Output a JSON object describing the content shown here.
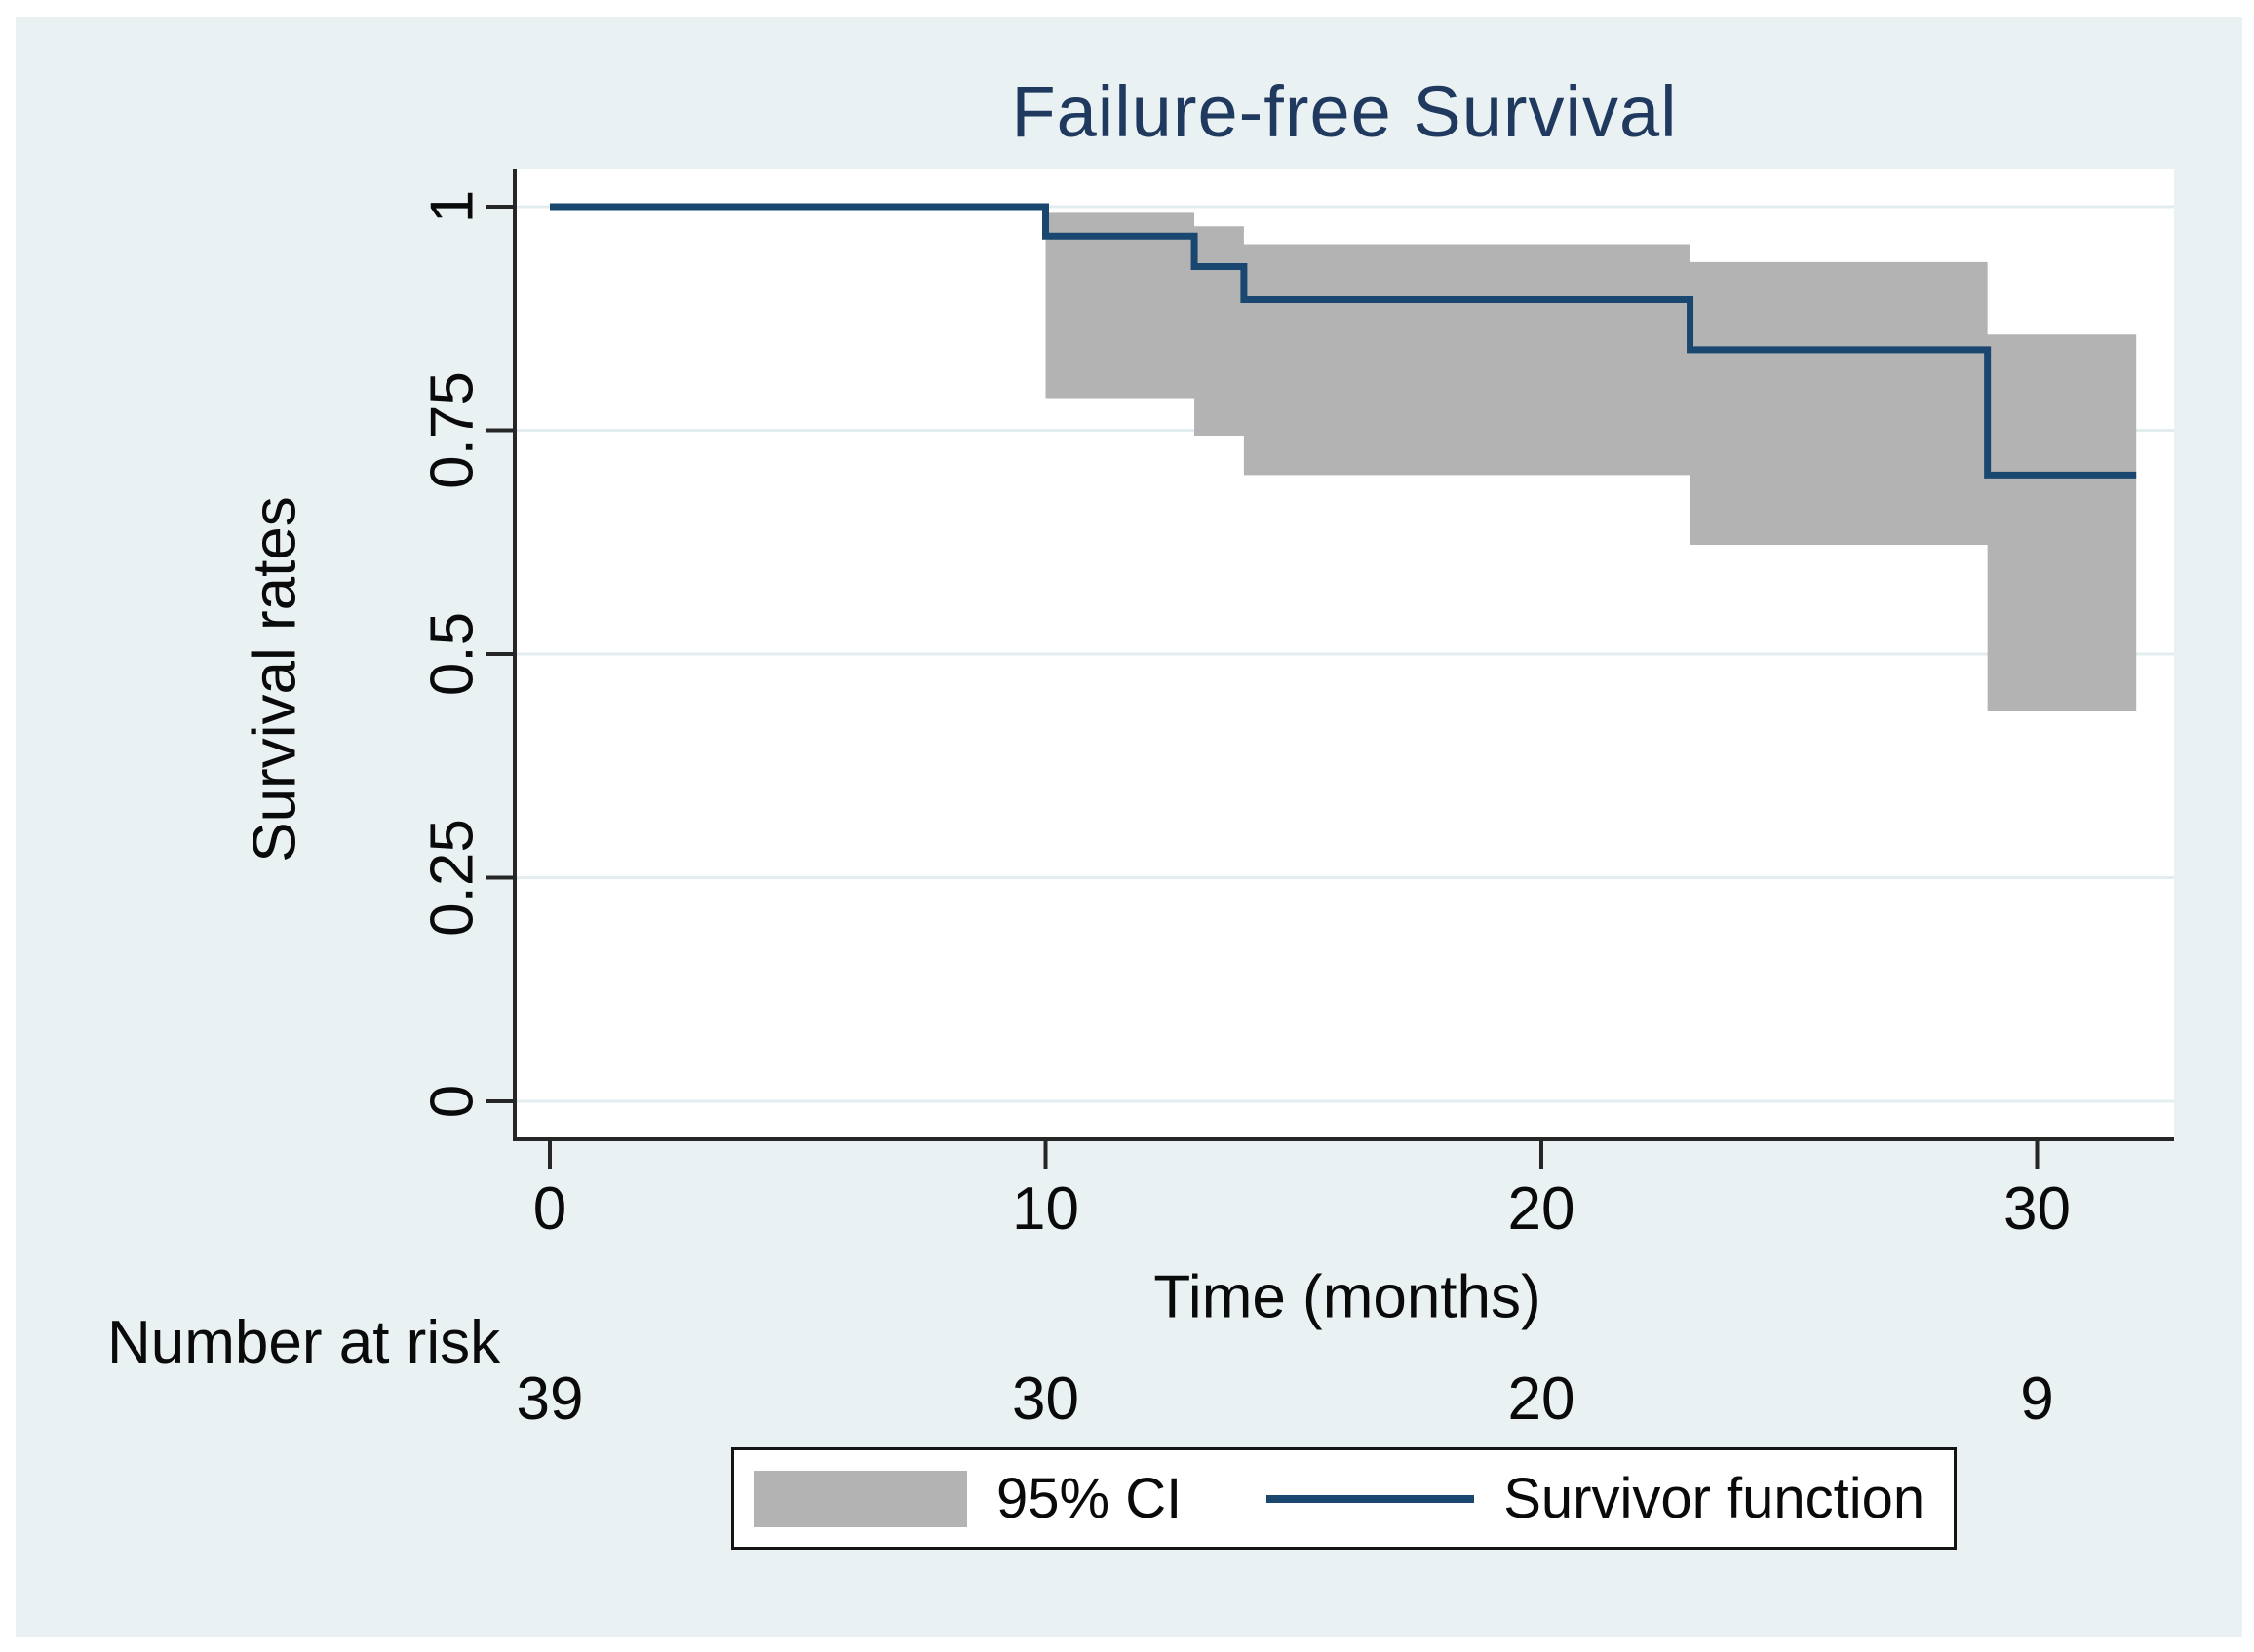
{
  "figure": {
    "canvas_color": "#eaf1f3",
    "plot_background": "#ffffff",
    "grid_color": "#e3edf0",
    "axis_color": "#262626",
    "title_color": "#20395f"
  },
  "chart_data": {
    "type": "line",
    "subtype": "kaplan-meier-step",
    "title": "Failure-free Survival",
    "xlabel": "Time (months)",
    "ylabel": "Survival rates",
    "xlim": [
      -0.7,
      32.8
    ],
    "ylim": [
      -0.05,
      1.05
    ],
    "grid": true,
    "x_ticks": [
      0,
      10,
      20,
      30
    ],
    "y_ticks": [
      0,
      0.25,
      0.5,
      0.75,
      1
    ],
    "y_tick_labels": [
      "0",
      "0.25",
      "0.5",
      "0.75",
      "1"
    ],
    "series": [
      {
        "name": "Survivor function",
        "type": "step",
        "color": "#1a476f",
        "points": [
          [
            0,
            1
          ],
          [
            10,
            1
          ],
          [
            10,
            0.967
          ],
          [
            13,
            0.967
          ],
          [
            13,
            0.933
          ],
          [
            14,
            0.933
          ],
          [
            14,
            0.896
          ],
          [
            23,
            0.896
          ],
          [
            23,
            0.84
          ],
          [
            29,
            0.84
          ],
          [
            29,
            0.7
          ],
          [
            32,
            0.7
          ]
        ]
      },
      {
        "name": "95% CI",
        "type": "band",
        "color": "#b3b3b3",
        "segments": [
          {
            "t0": 10,
            "t1": 13,
            "upper": 0.993,
            "lower": 0.786
          },
          {
            "t0": 13,
            "t1": 14,
            "upper": 0.978,
            "lower": 0.744
          },
          {
            "t0": 14,
            "t1": 23,
            "upper": 0.958,
            "lower": 0.7
          },
          {
            "t0": 23,
            "t1": 29,
            "upper": 0.938,
            "lower": 0.622
          },
          {
            "t0": 29,
            "t1": 32,
            "upper": 0.857,
            "lower": 0.436
          }
        ]
      }
    ],
    "risk_table": {
      "label": "Number at risk",
      "times": [
        0,
        10,
        20,
        30
      ],
      "counts": [
        "39",
        "30",
        "20",
        "9"
      ]
    },
    "legend": [
      {
        "label": "95% CI",
        "swatch": "band"
      },
      {
        "label": "Survivor function",
        "swatch": "line"
      }
    ]
  }
}
